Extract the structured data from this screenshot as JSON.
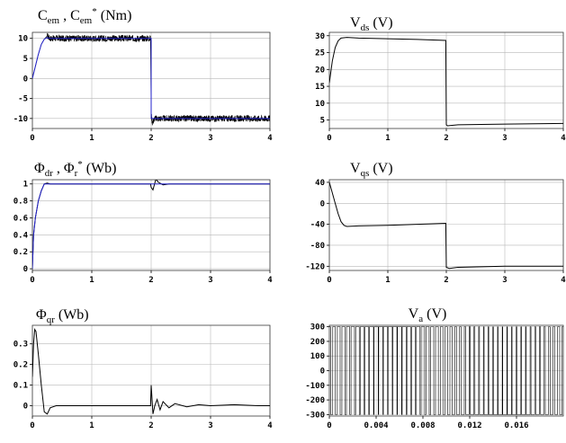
{
  "chart_data": [
    {
      "type": "line",
      "title": "C_em , C_em* (Nm)",
      "title_parts": {
        "base1": "C",
        "sub1": "em",
        "sep": " , ",
        "base2": "C",
        "sub2": "em",
        "sup2": "*",
        "unit": " (Nm)"
      },
      "xlim": [
        0,
        4
      ],
      "ylim": [
        -12.5,
        11.5
      ],
      "xticks": [
        0,
        1,
        2,
        3,
        4
      ],
      "xtick_labels": [
        "0",
        "1",
        "2",
        "3",
        "4"
      ],
      "yticks": [
        10,
        5,
        0,
        -5,
        -10
      ],
      "ytick_labels": [
        "10",
        "5",
        "0",
        "-5",
        "-10"
      ],
      "grid": true,
      "series": [
        {
          "role": "estimated",
          "color": "#000000",
          "noise": 0.8,
          "x": [
            0,
            0.05,
            0.1,
            0.15,
            0.2,
            0.25,
            0.3,
            1.99,
            2.0,
            2.02,
            2.06,
            4.0
          ],
          "y": [
            0,
            3,
            6,
            8.5,
            9.8,
            10.6,
            10,
            10,
            -9,
            -11,
            -10,
            -10
          ]
        },
        {
          "role": "reference",
          "color": "#2222cc",
          "x": [
            0,
            0.05,
            0.1,
            0.15,
            0.2,
            0.25,
            0.3,
            2.0,
            2.0,
            4.0
          ],
          "y": [
            0,
            3,
            6,
            8.5,
            9.8,
            10.2,
            10,
            10,
            -10,
            -10
          ]
        }
      ]
    },
    {
      "type": "line",
      "title": "V_ds (V)",
      "title_parts": {
        "base1": "V",
        "sub1": "ds",
        "unit": " (V)"
      },
      "xlim": [
        0,
        4
      ],
      "ylim": [
        2.5,
        31
      ],
      "xticks": [
        0,
        1,
        2,
        3,
        4
      ],
      "xtick_labels": [
        "0",
        "1",
        "2",
        "3",
        "4"
      ],
      "yticks": [
        30,
        25,
        20,
        15,
        10,
        5
      ],
      "ytick_labels": [
        "30",
        "25",
        "20",
        "15",
        "10",
        "5"
      ],
      "grid": true,
      "series": [
        {
          "color": "#000000",
          "x": [
            0,
            0.05,
            0.1,
            0.15,
            0.2,
            0.3,
            0.5,
            1.0,
            1.5,
            1.99,
            2.0,
            2.02,
            2.2,
            3.0,
            4.0
          ],
          "y": [
            16,
            22.5,
            26.5,
            28.5,
            29.3,
            29.5,
            29.3,
            29.1,
            28.9,
            28.6,
            3.6,
            3.3,
            3.6,
            3.8,
            4
          ]
        }
      ]
    },
    {
      "type": "line",
      "title": "Φ_dr , Φ_r* (Wb)",
      "title_parts": {
        "base1": "Φ",
        "sub1": "dr",
        "sep": " , ",
        "base2": "Φ",
        "sub2": "r",
        "sup2": "*",
        "unit": " (Wb)"
      },
      "xlim": [
        0,
        4
      ],
      "ylim": [
        -0.02,
        1.05
      ],
      "xticks": [
        0,
        1,
        2,
        3,
        4
      ],
      "xtick_labels": [
        "0",
        "1",
        "2",
        "3",
        "4"
      ],
      "yticks": [
        1,
        0.8,
        0.6,
        0.4,
        0.2,
        0
      ],
      "ytick_labels": [
        "1",
        "0.8",
        "0.6",
        "0.4",
        "0.2",
        "0"
      ],
      "grid": true,
      "series": [
        {
          "role": "estimated",
          "color": "#000000",
          "x": [
            0,
            0.02,
            0.05,
            0.08,
            0.1,
            0.15,
            0.2,
            0.25,
            0.3,
            1.0,
            1.99,
            2.0,
            2.03,
            2.08,
            2.12,
            2.2,
            2.3,
            4.0
          ],
          "y": [
            0,
            0.4,
            0.6,
            0.72,
            0.8,
            0.92,
            1.0,
            1.01,
            1.0,
            1.0,
            1.0,
            0.96,
            0.93,
            1.06,
            1.02,
            0.99,
            1.0,
            1.0
          ]
        },
        {
          "role": "reference",
          "color": "#2222cc",
          "x": [
            0,
            0.02,
            0.05,
            0.08,
            0.1,
            0.15,
            0.2,
            0.25,
            4.0
          ],
          "y": [
            0,
            0.4,
            0.6,
            0.72,
            0.8,
            0.92,
            1.0,
            1.0,
            1.0
          ]
        }
      ]
    },
    {
      "type": "line",
      "title": "V_qs (V)",
      "title_parts": {
        "base1": "V",
        "sub1": "qs",
        "unit": " (V)"
      },
      "xlim": [
        0,
        4
      ],
      "ylim": [
        -128,
        45
      ],
      "xticks": [
        0,
        1,
        2,
        3,
        4
      ],
      "xtick_labels": [
        "0",
        "1",
        "2",
        "3",
        "4"
      ],
      "yticks": [
        40,
        0,
        -40,
        -80,
        -120
      ],
      "ytick_labels": [
        "40",
        "0",
        "-40",
        "-80",
        "-120"
      ],
      "grid": true,
      "series": [
        {
          "color": "#000000",
          "x": [
            0,
            0.05,
            0.1,
            0.15,
            0.2,
            0.25,
            0.3,
            0.5,
            1.0,
            1.5,
            1.99,
            2.0,
            2.05,
            2.2,
            3.0,
            4.0
          ],
          "y": [
            40,
            20,
            0,
            -20,
            -35,
            -42,
            -44,
            -43,
            -42,
            -40,
            -38,
            -122,
            -124,
            -122,
            -120,
            -120
          ]
        }
      ]
    },
    {
      "type": "line",
      "title": "Φ_qr (Wb)",
      "title_parts": {
        "base1": "Φ",
        "sub1": "qr",
        "unit": " (Wb)"
      },
      "xlim": [
        0,
        4
      ],
      "ylim": [
        -0.05,
        0.39
      ],
      "xticks": [
        0,
        1,
        2,
        3,
        4
      ],
      "xtick_labels": [
        "0",
        "1",
        "2",
        "3",
        "4"
      ],
      "yticks": [
        0.3,
        0.2,
        0.1,
        0
      ],
      "ytick_labels": [
        "0.3",
        "0.2",
        "0.1",
        "0"
      ],
      "grid": true,
      "series": [
        {
          "color": "#000000",
          "x": [
            0,
            0.02,
            0.04,
            0.06,
            0.1,
            0.15,
            0.2,
            0.25,
            0.3,
            0.4,
            0.6,
            1.0,
            1.99,
            2.0,
            2.03,
            2.06,
            2.1,
            2.15,
            2.2,
            2.3,
            2.4,
            2.6,
            2.8,
            3.0,
            3.4,
            3.8,
            4.0
          ],
          "y": [
            0.14,
            0.3,
            0.37,
            0.36,
            0.25,
            0.1,
            -0.03,
            -0.04,
            -0.01,
            0,
            0,
            0,
            0,
            0.1,
            -0.04,
            0,
            0.03,
            -0.02,
            0.02,
            -0.01,
            0.01,
            -0.005,
            0.005,
            0,
            0.005,
            0,
            0
          ]
        }
      ]
    },
    {
      "type": "line",
      "title": "V_a (V)",
      "title_parts": {
        "base1": "V",
        "sub1": "a",
        "unit": " (V)"
      },
      "xlim": [
        0,
        0.02
      ],
      "ylim": [
        -310,
        310
      ],
      "xticks": [
        0,
        0.004,
        0.008,
        0.012,
        0.016
      ],
      "xtick_labels": [
        "0",
        "0.004",
        "0.008",
        "0.012",
        "0.016"
      ],
      "yticks": [
        300,
        200,
        100,
        0,
        -100,
        -200,
        -300
      ],
      "ytick_labels": [
        "300",
        "200",
        "100",
        "0",
        "-100",
        "-200",
        "-300"
      ],
      "grid": true,
      "waveform": {
        "type": "pwm",
        "amplitude": 300,
        "carrier_hz": 2500,
        "modulation_hz": 50,
        "modulation_depth": 0.8,
        "color": "#000000"
      }
    }
  ]
}
